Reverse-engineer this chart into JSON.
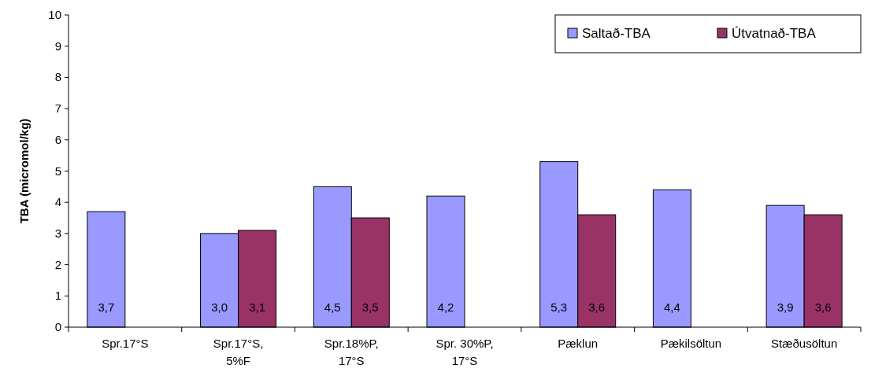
{
  "chart_data": {
    "type": "bar",
    "ylabel": "TBA (micromol/kg)",
    "categories": [
      "Spr.17°S",
      "Spr.17°S, 5%F",
      "Spr.18%P, 17°S",
      "Spr. 30%P, 17°S",
      "Pæklun",
      "Pækilsöltun",
      "Stæðusöltun"
    ],
    "series": [
      {
        "name": "Saltað-TBA",
        "color": "#9999ff",
        "values": [
          3.7,
          3.0,
          4.5,
          4.2,
          5.3,
          4.4,
          3.9
        ],
        "value_labels": [
          "3,7",
          "3,0",
          "4,5",
          "4,2",
          "5,3",
          "4,4",
          "3,9"
        ]
      },
      {
        "name": "Útvatnað-TBA",
        "color": "#993366",
        "values": [
          null,
          3.1,
          3.5,
          null,
          3.6,
          null,
          3.6
        ],
        "value_labels": [
          null,
          "3,1",
          "3,5",
          null,
          "3,6",
          null,
          "3,6"
        ]
      }
    ],
    "ylim": [
      0,
      10
    ],
    "yticks": [
      0,
      1,
      2,
      3,
      4,
      5,
      6,
      7,
      8,
      9,
      10
    ],
    "legend": "top right",
    "grid": false
  }
}
